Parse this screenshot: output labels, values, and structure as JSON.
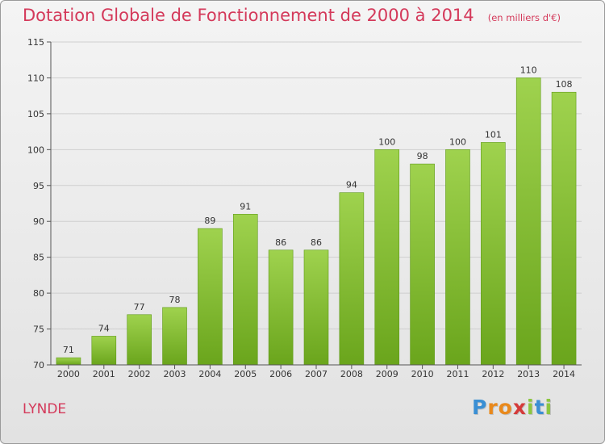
{
  "chart_data": {
    "type": "bar",
    "title": "Dotation Globale de Fonctionnement de 2000 à 2014",
    "subtitle": "(en milliers d'€)",
    "categories": [
      "2000",
      "2001",
      "2002",
      "2003",
      "2004",
      "2005",
      "2006",
      "2007",
      "2008",
      "2009",
      "2010",
      "2011",
      "2012",
      "2013",
      "2014"
    ],
    "values": [
      71,
      74,
      77,
      78,
      89,
      91,
      86,
      86,
      94,
      100,
      98,
      100,
      101,
      110,
      108
    ],
    "ylim": [
      70,
      115
    ],
    "yticks": [
      70,
      75,
      80,
      85,
      90,
      95,
      100,
      105,
      110,
      115
    ],
    "grid": true,
    "bar_color": "#8cc63f",
    "location_label": "LYNDE"
  },
  "logo": {
    "text": "Proxiti",
    "letters": [
      "P",
      "r",
      "o",
      "x",
      "i",
      "t",
      "i"
    ],
    "colors": [
      "#3a8fd4",
      "#e9891c",
      "#e9891c",
      "#d43a3a",
      "#8cc63f",
      "#3a8fd4",
      "#8cc63f"
    ]
  },
  "colors": {
    "accent": "#d4395a",
    "bar_light": "#9fd24e",
    "bar_dark": "#6aa51c"
  }
}
